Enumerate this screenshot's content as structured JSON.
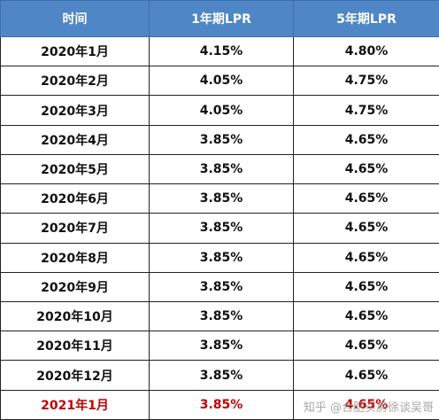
{
  "table": {
    "headers": [
      "时间",
      "1年期LPR",
      "5年期LPR"
    ],
    "rows": [
      [
        "2020年1月",
        "4.15%",
        "4.80%"
      ],
      [
        "2020年2月",
        "4.05%",
        "4.75%"
      ],
      [
        "2020年3月",
        "4.05%",
        "4.75%"
      ],
      [
        "2020年4月",
        "3.85%",
        "4.65%"
      ],
      [
        "2020年5月",
        "3.85%",
        "4.65%"
      ],
      [
        "2020年6月",
        "3.85%",
        "4.65%"
      ],
      [
        "2020年7月",
        "3.85%",
        "4.65%"
      ],
      [
        "2020年8月",
        "3.85%",
        "4.65%"
      ],
      [
        "2020年9月",
        "3.85%",
        "4.65%"
      ],
      [
        "2020年10月",
        "3.85%",
        "4.65%"
      ],
      [
        "2020年11月",
        "3.85%",
        "4.65%"
      ],
      [
        "2020年12月",
        "3.85%",
        "4.65%"
      ],
      [
        "2021年1月",
        "3.85%",
        "4.65%"
      ]
    ],
    "highlight_row_index": 12
  },
  "colors": {
    "header_bg": "#4f86c6",
    "header_text": "#ffffff",
    "highlight_text": "#c00000"
  },
  "watermark": "知乎 @合肥买房徐谈吴哥"
}
